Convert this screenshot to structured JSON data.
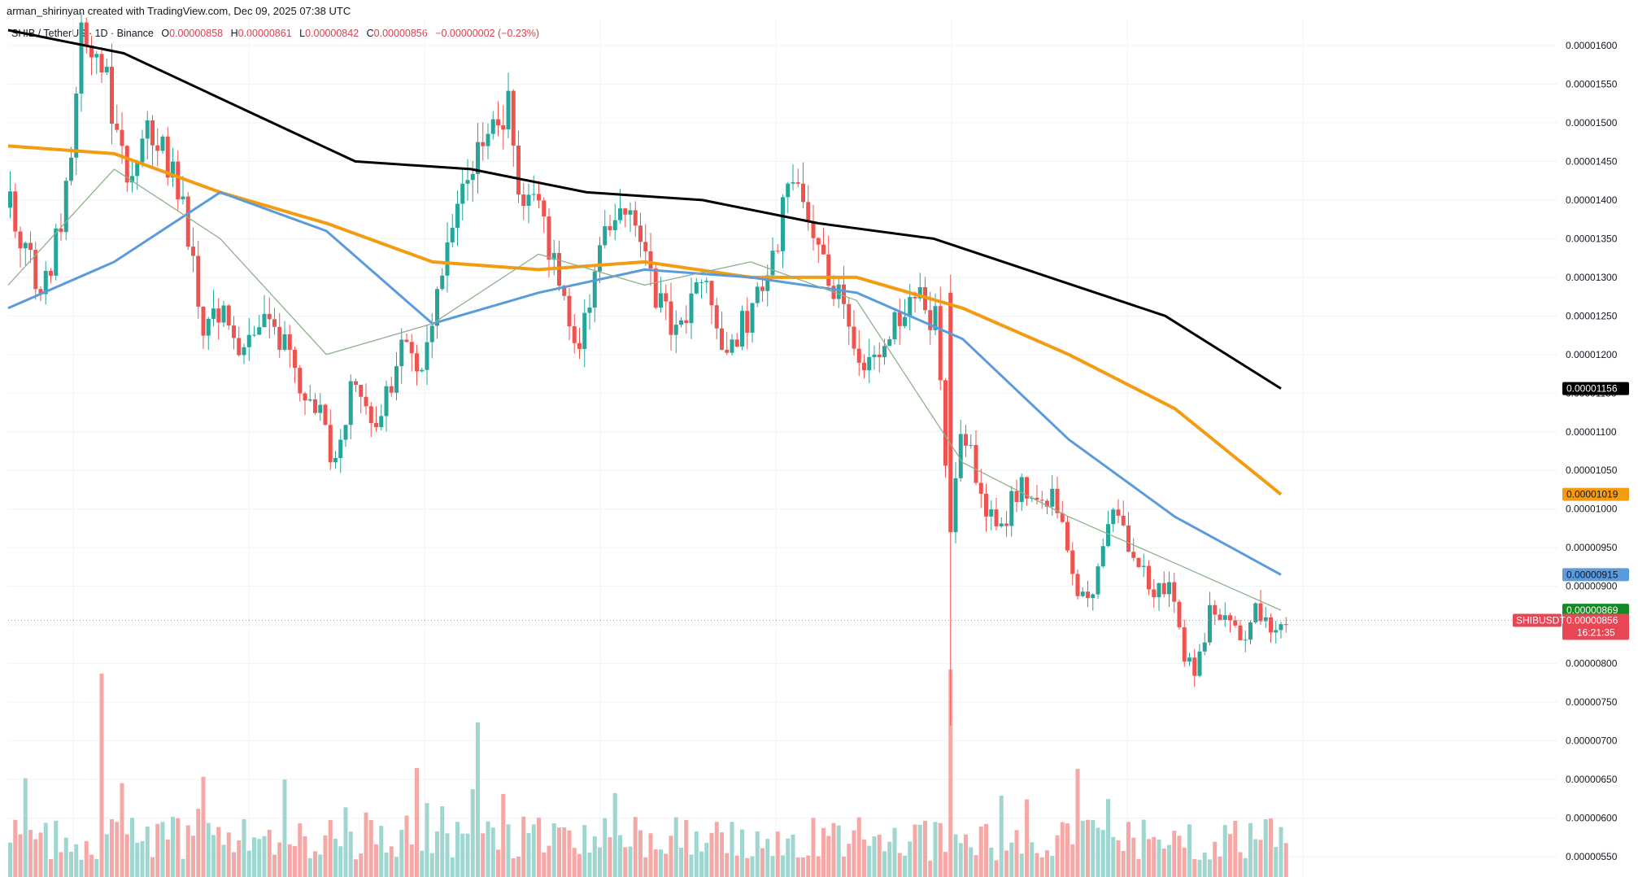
{
  "credit": "arman_shirinyan created with TradingView.com, Dec 09, 2025 07:38 UTC",
  "legend": {
    "symbol": "SHIB / TetherUS · 1D · Binance",
    "o_key": "O",
    "o": "0.00000858",
    "h_key": "H",
    "h": "0.00000861",
    "l_key": "L",
    "l": "0.00000842",
    "c_key": "C",
    "c": "0.00000856",
    "change": "−0.00000002 (−0.23%)"
  },
  "colors": {
    "up": "#26a69a",
    "down": "#ef5350",
    "up_volume": "#9fd6d0",
    "down_volume": "#f4a9a7",
    "ma_fast": "#8fb08c",
    "ma_mid": "#5b9bdc",
    "ma_slow": "#f39c12",
    "ma_long": "#000000",
    "price_tag": "#e84555",
    "last_tag": "#138a24"
  },
  "axis_ticks": [
    "0.00001600",
    "0.00001550",
    "0.00001500",
    "0.00001450",
    "0.00001400",
    "0.00001350",
    "0.00001300",
    "0.00001250",
    "0.00001200",
    "0.00001150",
    "0.00001100",
    "0.00001050",
    "0.00001000",
    "0.00000950",
    "0.00000900",
    "0.00000850",
    "0.00000800",
    "0.00000750",
    "0.00000700",
    "0.00000650",
    "0.00000600",
    "0.00000550"
  ],
  "price_tags": {
    "ma_long": "0.00001156",
    "ma_slow": "0.00001019",
    "ma_mid": "0.00000915",
    "last_close": "0.00000869",
    "symbol_label": "SHIBUSDT",
    "current": "0.00000856",
    "countdown": "16:21:35"
  },
  "chart_data": {
    "type": "candlestick",
    "y_range": [
      5.1e-06,
      1.62e-05
    ],
    "ticks": [
      1.6e-05,
      1.55e-05,
      1.5e-05,
      1.45e-05,
      1.4e-05,
      1.35e-05,
      1.3e-05,
      1.25e-05,
      1.2e-05,
      1.15e-05,
      1.1e-05,
      1.05e-05,
      1e-05,
      9.5e-06,
      9e-06,
      8.5e-06,
      8e-06,
      7.5e-06,
      7e-06,
      6.5e-06,
      6e-06,
      5.5e-06
    ],
    "ohlc_samples": [
      {
        "o": 1.413e-05,
        "h": 1.42e-05,
        "l": 1.338e-05,
        "c": 1.346e-05
      },
      {
        "o": 1.29e-05,
        "h": 1.383e-05,
        "l": 1.267e-05,
        "c": 1.376e-05
      },
      {
        "o": 1.42e-05,
        "h": 1.667e-05,
        "l": 1.42e-05,
        "c": 1.647e-05
      },
      {
        "o": 1.572e-05,
        "h": 1.604e-05,
        "l": 1.392e-05,
        "c": 1.416e-05
      },
      {
        "o": 1.369e-05,
        "h": 1.39e-05,
        "l": 1.196e-05,
        "c": 1.208e-05
      },
      {
        "o": 1.151e-05,
        "h": 1.155e-05,
        "l": 1.002e-05,
        "c": 1.05e-05
      },
      {
        "o": 1.305e-05,
        "h": 1.37e-05,
        "l": 1.195e-05,
        "c": 1.37e-05
      },
      {
        "o": 1.485e-05,
        "h": 1.6e-05,
        "l": 1.421e-05,
        "c": 1.55e-05
      },
      {
        "o": 1.43e-05,
        "h": 1.436e-05,
        "l": 1.303e-05,
        "c": 1.308e-05
      },
      {
        "o": 1.245e-05,
        "h": 1.356e-05,
        "l": 1.183e-05,
        "c": 1.336e-05
      },
      {
        "o": 1.32e-05,
        "h": 1.342e-05,
        "l": 1.206e-05,
        "c": 1.244e-05
      },
      {
        "o": 1.32e-05,
        "h": 1.484e-05,
        "l": 1.315e-05,
        "c": 1.402e-05
      },
      {
        "o": 1.396e-05,
        "h": 1.405e-05,
        "l": 1.27e-05,
        "c": 1.275e-05
      },
      {
        "o": 1.201e-05,
        "h": 1.238e-05,
        "l": 1.148e-05,
        "c": 1.201e-05
      },
      {
        "o": 1.287e-05,
        "h": 1.287e-05,
        "l": 7.18e-06,
        "c": 9.69e-06
      },
      {
        "o": 1.126e-05,
        "h": 1.126e-05,
        "l": 1.035e-05,
        "c": 1.04e-05
      },
      {
        "o": 9.95e-06,
        "h": 9.95e-06,
        "l": 9.3e-06,
        "c": 9.57e-06
      },
      {
        "o": 9.35e-06,
        "h": 9.35e-06,
        "l": 8.41e-06,
        "c": 8.9e-06
      },
      {
        "o": 8.72e-06,
        "h": 8.78e-06,
        "l": 7.75e-06,
        "c": 7.87e-06
      },
      {
        "o": 8.41e-06,
        "h": 9.5e-06,
        "l": 8e-06,
        "c": 8.93e-06
      },
      {
        "o": 8.58e-06,
        "h": 8.61e-06,
        "l": 8.42e-06,
        "c": 8.56e-06
      }
    ],
    "moving_averages": [
      {
        "color": "ma_long",
        "points": [
          1.62e-05,
          1.59e-05,
          1.52e-05,
          1.45e-05,
          1.44e-05,
          1.41e-05,
          1.4e-05,
          1.37e-05,
          1.35e-05,
          1.3e-05,
          1.25e-05,
          1.156e-05
        ]
      },
      {
        "color": "ma_slow",
        "points": [
          1.47e-05,
          1.46e-05,
          1.41e-05,
          1.37e-05,
          1.32e-05,
          1.31e-05,
          1.32e-05,
          1.3e-05,
          1.3e-05,
          1.26e-05,
          1.2e-05,
          1.13e-05,
          1.019e-05
        ]
      },
      {
        "color": "ma_mid",
        "points": [
          1.26e-05,
          1.32e-05,
          1.41e-05,
          1.36e-05,
          1.24e-05,
          1.28e-05,
          1.31e-05,
          1.3e-05,
          1.28e-05,
          1.22e-05,
          1.09e-05,
          9.9e-06,
          9.15e-06
        ]
      },
      {
        "color": "ma_fast",
        "points": [
          1.29e-05,
          1.44e-05,
          1.35e-05,
          1.2e-05,
          1.24e-05,
          1.33e-05,
          1.29e-05,
          1.32e-05,
          1.27e-05,
          1.06e-05,
          9.9e-06,
          9.3e-06,
          8.69e-06
        ]
      }
    ]
  }
}
